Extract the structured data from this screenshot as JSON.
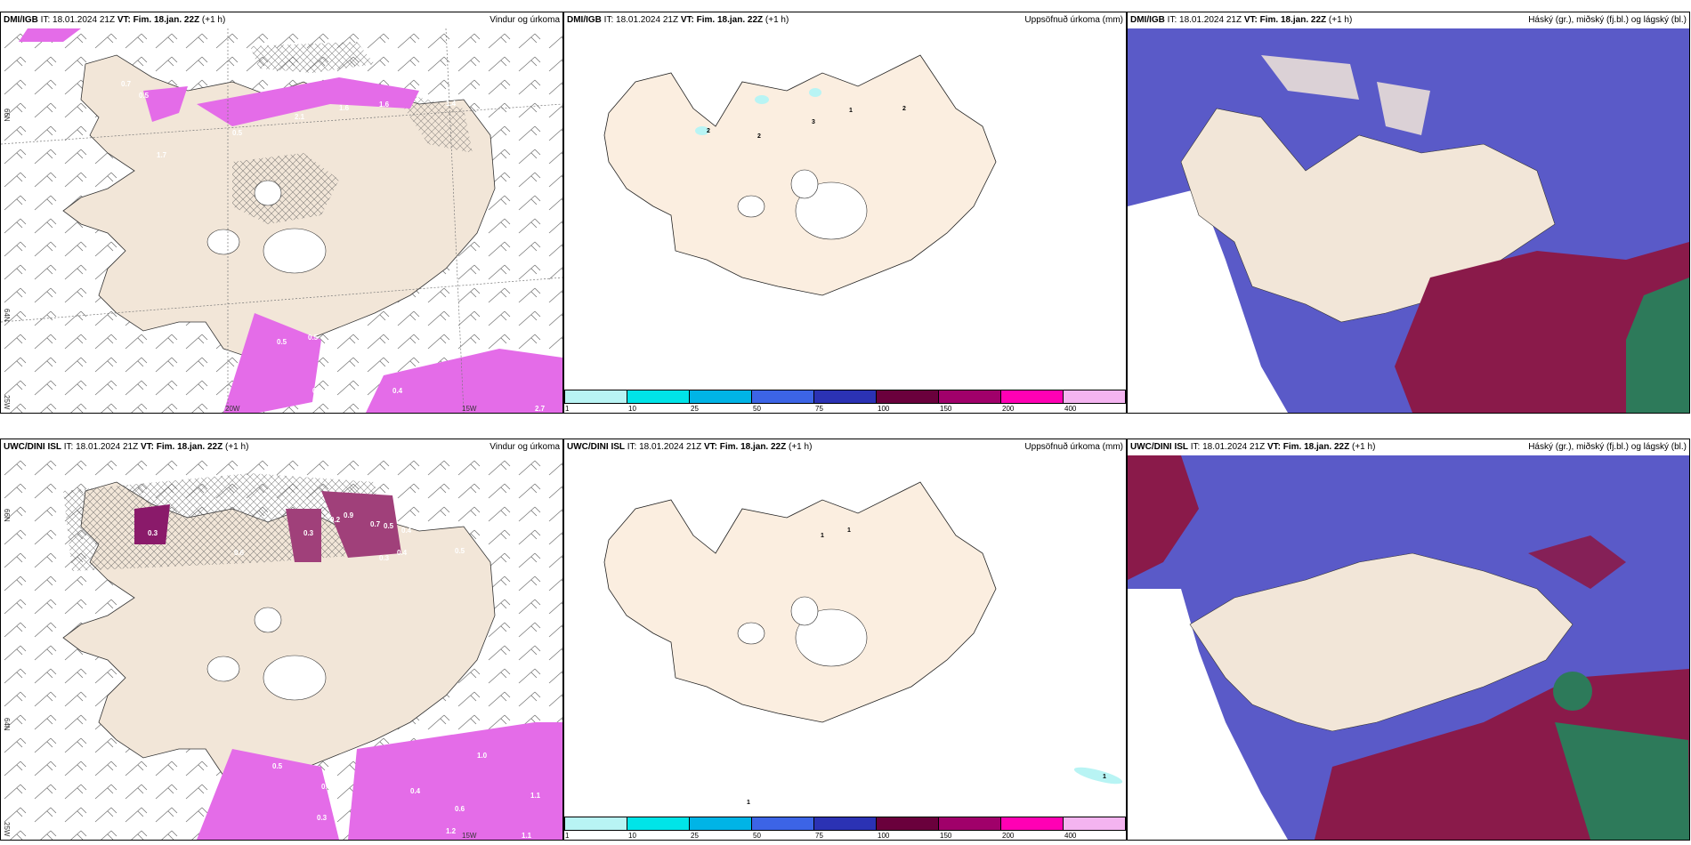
{
  "panels": [
    {
      "model": "DMI/IGB",
      "it": "IT: 18.01.2024 21Z",
      "vt_label": "VT:",
      "vt": "Fim. 18.jan. 22Z",
      "lead": "(+1 h)",
      "title": "Vindur og úrkoma"
    },
    {
      "model": "DMI/IGB",
      "it": "IT: 18.01.2024 21Z",
      "vt_label": "VT:",
      "vt": "Fim. 18.jan. 22Z",
      "lead": "(+1 h)",
      "title": "Uppsöfnuð úrkoma (mm)"
    },
    {
      "model": "DMI/IGB",
      "it": "IT: 18.01.2024 21Z",
      "vt_label": "VT:",
      "vt": "Fim. 18.jan. 22Z",
      "lead": "(+1 h)",
      "title": "Háský (gr.), miðský (fj.bl.) og lágský (bl.)"
    },
    {
      "model": "UWC/DINI ISL",
      "it": "IT: 18.01.2024 21Z",
      "vt_label": "VT:",
      "vt": "Fim. 18.jan. 22Z",
      "lead": "(+1 h)",
      "title": "Vindur og úrkoma"
    },
    {
      "model": "UWC/DINI ISL",
      "it": "IT: 18.01.2024 21Z",
      "vt_label": "VT:",
      "vt": "Fim. 18.jan. 22Z",
      "lead": "(+1 h)",
      "title": "Uppsöfnuð úrkoma (mm)"
    },
    {
      "model": "UWC/DINI ISL",
      "it": "IT: 18.01.2024 21Z",
      "vt_label": "VT:",
      "vt": "Fim. 18.jan. 22Z",
      "lead": "(+1 h)",
      "title": "Háský (gr.), miðský (fj.bl.) og lágský (bl.)"
    }
  ],
  "axis_labels": {
    "lat66": "66N",
    "lat64": "64N",
    "lon25": "25W",
    "lon20": "20W",
    "lon15": "15W"
  },
  "precip_labels_top": [
    "0.5",
    "0.7",
    "1.7",
    "0.5",
    "2.1",
    "1.6",
    "1.6",
    "1.4",
    "0.8",
    "0.5",
    "0.5",
    "0.4",
    "0.2",
    "2.7"
  ],
  "precip_labels_bottom": [
    "0.3",
    "0.3",
    "0.2",
    "0.9",
    "0.7",
    "0.5",
    "0.4",
    "0.3",
    "0.4",
    "0.4",
    "0.5",
    "0.6",
    "0.5",
    "0.3",
    "0.3",
    "1.0",
    "0.4",
    "1.1",
    "0.6",
    "1.2",
    "1.1"
  ],
  "accum_labels_top": [
    "2",
    "2",
    "3",
    "1",
    "2"
  ],
  "accum_labels_bottom": [
    "1",
    "1",
    "1",
    "1"
  ],
  "colorbar": {
    "ticks": [
      "1",
      "10",
      "25",
      "50",
      "75",
      "100",
      "150",
      "200",
      "400"
    ],
    "colors": [
      "#b8f4f4",
      "#00e4e8",
      "#00b4e6",
      "#3c64e6",
      "#2b32b4",
      "#6a003c",
      "#a0006a",
      "#ff00b4",
      "#f4b4f0"
    ]
  },
  "colors": {
    "land": "#f2e6d8",
    "land_accum": "#fbeee0",
    "precip": "#e46ce8",
    "high_cloud": "#5a5ac8",
    "mid_cloud": "#8a1a4a",
    "low_cloud": "#2d7a5a",
    "ice": "#ffffff"
  }
}
